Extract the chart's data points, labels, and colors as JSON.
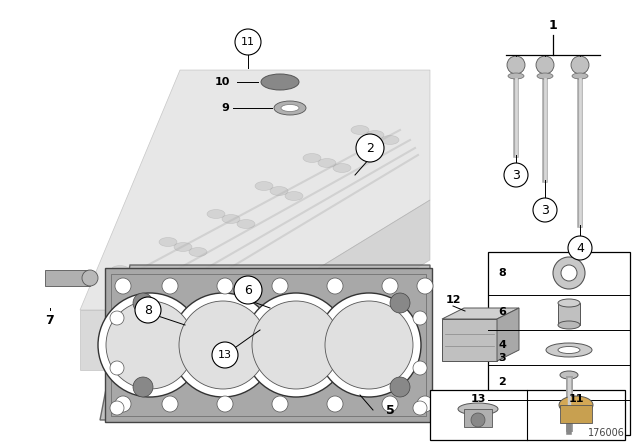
{
  "bg_color": "#ffffff",
  "diagram_number": "176006",
  "border_color": "#000000",
  "text_color": "#000000",
  "engine_color": "#c8c8c8",
  "gasket_color": "#a8a8a8",
  "part_color": "#b8b8b8"
}
